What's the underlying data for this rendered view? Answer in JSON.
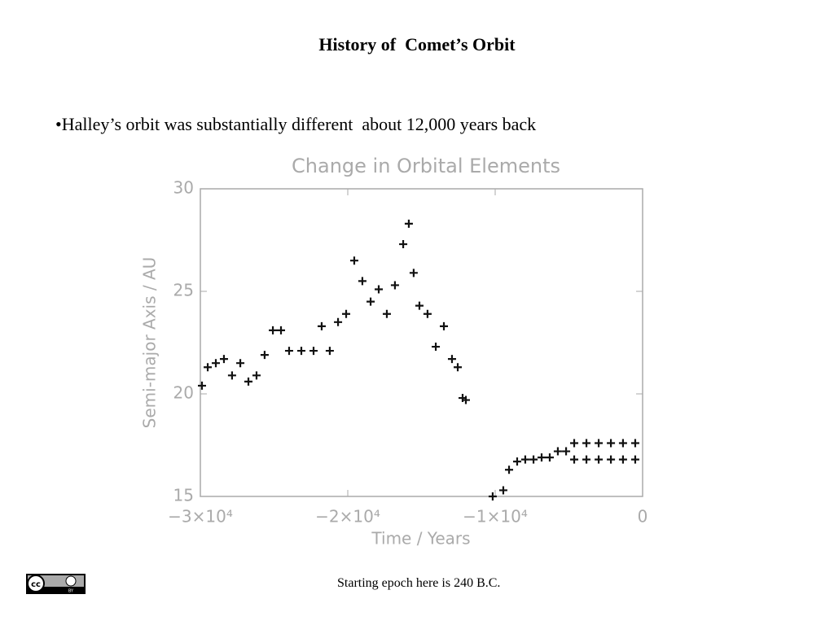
{
  "slide": {
    "title": "History of  Comet’s Orbit",
    "bullet": "•Halley’s orbit was substantially different  about 12,000 years back",
    "footer": "Starting epoch here is 240 B.C."
  },
  "license": {
    "cc": "cc",
    "by": "BY"
  },
  "chart_data": {
    "type": "scatter",
    "title": "Change in Orbital Elements",
    "x_label": "Time / Years",
    "y_label": "Semi-major Axis / AU",
    "xlim": [
      -30000,
      0
    ],
    "ylim": [
      15,
      30
    ],
    "xticks": [
      {
        "value": -30000,
        "label": "−3×10⁴"
      },
      {
        "value": -20000,
        "label": "−2×10⁴"
      },
      {
        "value": -10000,
        "label": "−1×10⁴"
      },
      0
    ],
    "yticks": [
      15,
      20,
      25,
      30
    ],
    "color": "#111",
    "x": [
      -29890,
      -29500,
      -28950,
      -28400,
      -27850,
      -27290,
      -26740,
      -26190,
      -25640,
      -25080,
      -24530,
      -23980,
      -23150,
      -22320,
      -21770,
      -21220,
      -20660,
      -20110,
      -19560,
      -19010,
      -18450,
      -17900,
      -17350,
      -16800,
      -16240,
      -15860,
      -15530,
      -15140,
      -14590,
      -14030,
      -13480,
      -12930,
      -12540,
      -12210,
      -11990,
      -10170,
      -9450,
      -9060,
      -8510,
      -7960,
      -7400,
      -6850,
      -6300,
      -5750,
      -5190,
      -4640,
      -4640,
      -3810,
      -3810,
      -2980,
      -2980,
      -2150,
      -2150,
      -1330,
      -1330,
      -500,
      -500
    ],
    "y": [
      20.4,
      21.3,
      21.5,
      21.7,
      20.9,
      21.5,
      20.6,
      20.9,
      21.9,
      23.1,
      23.1,
      22.1,
      22.1,
      22.1,
      23.3,
      22.1,
      23.5,
      23.9,
      26.5,
      25.5,
      24.5,
      25.1,
      23.9,
      25.3,
      27.3,
      28.3,
      25.9,
      24.3,
      23.9,
      22.3,
      23.3,
      21.7,
      21.3,
      19.8,
      19.7,
      15.0,
      15.3,
      16.3,
      16.7,
      16.8,
      16.8,
      16.9,
      16.9,
      17.2,
      17.2,
      17.6,
      16.8,
      17.6,
      16.8,
      17.6,
      16.8,
      17.6,
      16.8,
      17.6,
      16.8,
      17.6,
      16.8
    ]
  }
}
